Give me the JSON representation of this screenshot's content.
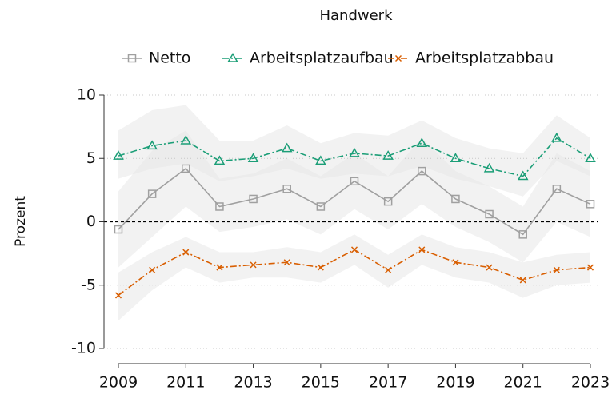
{
  "chart_data": {
    "type": "line",
    "title": "Handwerk",
    "y_label": "Prozent",
    "x": [
      2009,
      2010,
      2011,
      2012,
      2013,
      2014,
      2015,
      2016,
      2017,
      2018,
      2019,
      2020,
      2021,
      2022,
      2023
    ],
    "xlim": [
      2009,
      2023
    ],
    "xticks": [
      2009,
      2011,
      2013,
      2015,
      2017,
      2019,
      2021,
      2023
    ],
    "ylim": [
      -10,
      10
    ],
    "yticks": [
      -10,
      -5,
      0,
      5,
      10
    ],
    "grid": true,
    "reference_line": 0,
    "legend": "top",
    "series": [
      {
        "name": "Netto",
        "color": "#a0a0a0",
        "marker": "square",
        "dash": "solid",
        "values": [
          -0.6,
          2.2,
          4.2,
          1.2,
          1.8,
          2.6,
          1.2,
          3.2,
          1.6,
          4.0,
          1.8,
          0.6,
          -1.0,
          2.6,
          1.4
        ],
        "band_upper": [
          2.4,
          5.6,
          7.2,
          3.4,
          3.8,
          5.0,
          3.6,
          5.4,
          3.6,
          6.6,
          4.0,
          2.8,
          1.2,
          5.4,
          4.0
        ],
        "band_lower": [
          -3.6,
          -1.2,
          1.2,
          -0.8,
          -0.4,
          0.2,
          -1.0,
          1.0,
          -0.6,
          1.4,
          -0.4,
          -1.6,
          -3.2,
          0.0,
          -1.2
        ]
      },
      {
        "name": "Arbeitsplatzaufbau",
        "color": "#1b9e77",
        "marker": "triangle",
        "dash": "dashdot",
        "values": [
          5.2,
          6.0,
          6.4,
          4.8,
          5.0,
          5.8,
          4.8,
          5.4,
          5.2,
          6.2,
          5.0,
          4.2,
          3.6,
          6.6,
          5.0
        ],
        "band_upper": [
          7.2,
          8.8,
          9.2,
          6.4,
          6.4,
          7.6,
          6.2,
          7.0,
          6.8,
          8.0,
          6.6,
          5.8,
          5.4,
          8.4,
          6.6
        ],
        "band_lower": [
          3.4,
          4.2,
          4.6,
          3.2,
          3.6,
          4.2,
          3.4,
          3.8,
          3.6,
          4.4,
          3.4,
          2.8,
          2.0,
          4.8,
          3.6
        ]
      },
      {
        "name": "Arbeitsplatzabbau",
        "color": "#d95f02",
        "marker": "x",
        "dash": "dashdot",
        "values": [
          -5.8,
          -3.8,
          -2.4,
          -3.6,
          -3.4,
          -3.2,
          -3.6,
          -2.2,
          -3.8,
          -2.2,
          -3.2,
          -3.6,
          -4.6,
          -3.8,
          -3.6
        ],
        "band_upper": [
          -4.0,
          -2.4,
          -1.2,
          -2.4,
          -2.4,
          -2.0,
          -2.4,
          -1.0,
          -2.6,
          -1.0,
          -2.0,
          -2.4,
          -3.2,
          -2.6,
          -2.4
        ],
        "band_lower": [
          -7.8,
          -5.4,
          -3.6,
          -4.8,
          -4.4,
          -4.4,
          -4.8,
          -3.4,
          -5.2,
          -3.4,
          -4.4,
          -4.8,
          -6.0,
          -5.0,
          -4.8
        ]
      }
    ]
  }
}
